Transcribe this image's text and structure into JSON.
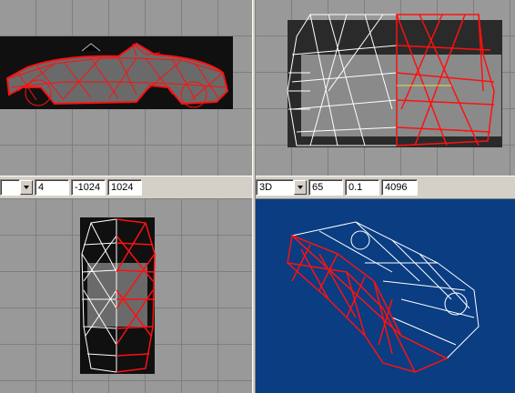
{
  "toolbar_left": {
    "mode": "",
    "fields": [
      "4",
      "-1024",
      "1024"
    ]
  },
  "toolbar_right": {
    "mode": "3D",
    "fields": [
      "65",
      "0.1",
      "4096"
    ]
  },
  "colors": {
    "grid_bg": "#999999",
    "grid_line": "#7e7e7e",
    "viewport3d_bg": "#0a3d82",
    "wire_red": "#ff1010",
    "wire_white": "#ffffff"
  }
}
